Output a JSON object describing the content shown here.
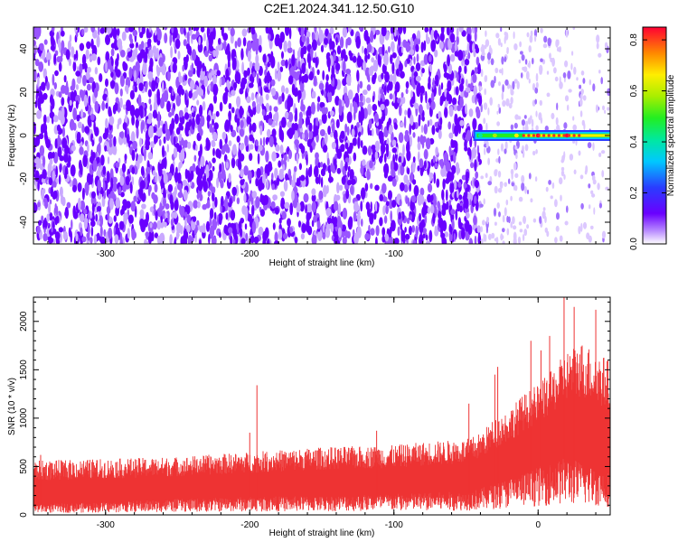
{
  "title": "C2E1.2024.341.12.50.G10",
  "chart_data": [
    {
      "type": "heatmap",
      "xlabel": "Height of straight line (km)",
      "ylabel": "Frequency (Hz)",
      "xlim": [
        -350,
        50
      ],
      "ylim": [
        -50,
        50
      ],
      "x_ticks": [
        -300,
        -200,
        -100,
        0
      ],
      "y_ticks": [
        -40,
        -20,
        0,
        20,
        40
      ],
      "colorbar": {
        "label": "Normalized spectral amplitude",
        "range": [
          0,
          0.85
        ],
        "ticks": [
          "0.0",
          "0.2",
          "0.4",
          "0.6",
          "0.8"
        ]
      },
      "features": {
        "noise_region_x": [
          -350,
          -40
        ],
        "noise_mean_amplitude": 0.05,
        "fading_region_x": [
          -40,
          50
        ],
        "fading_mean_amplitude": 0.015,
        "signal_line": {
          "x_start": -45,
          "x_end": 50,
          "frequency": 0,
          "peak_amplitude": 0.82,
          "peaks": [
            {
              "x": -40,
              "amplitude": 0.35
            },
            {
              "x": -30,
              "amplitude": 0.5
            },
            {
              "x": -15,
              "amplitude": 0.6
            },
            {
              "x": 0,
              "amplitude": 0.8
            },
            {
              "x": 20,
              "amplitude": 0.82
            }
          ]
        }
      }
    },
    {
      "type": "area",
      "xlabel": "Height of straight line (km)",
      "ylabel": "SNR (10 * v/v)",
      "xlim": [
        -350,
        50
      ],
      "ylim": [
        0,
        2250
      ],
      "x_ticks": [
        -300,
        -200,
        -100,
        0
      ],
      "y_ticks": [
        0,
        500,
        1000,
        1500,
        2000
      ],
      "series": [
        {
          "color": "#ee3333",
          "envelope": {
            "x": [
              -350,
              -300,
              -250,
              -200,
              -150,
              -100,
              -75,
              -50,
              -40,
              -30,
              -20,
              -10,
              0,
              10,
              20,
              30,
              40,
              50
            ],
            "lower": [
              100,
              120,
              150,
              170,
              180,
              200,
              210,
              220,
              250,
              300,
              350,
              400,
              450,
              500,
              550,
              500,
              450,
              400
            ],
            "upper": [
              560,
              580,
              600,
              650,
              700,
              720,
              760,
              780,
              850,
              1000,
              1100,
              1250,
              1350,
              1500,
              1700,
              1800,
              1700,
              1600
            ]
          },
          "spikes": [
            {
              "x": -345,
              "y": 620
            },
            {
              "x": -200,
              "y": 850
            },
            {
              "x": -195,
              "y": 1340
            },
            {
              "x": -112,
              "y": 870
            },
            {
              "x": -48,
              "y": 1150
            },
            {
              "x": -30,
              "y": 1450
            },
            {
              "x": -28,
              "y": 1530
            },
            {
              "x": -5,
              "y": 1800
            },
            {
              "x": 2,
              "y": 1700
            },
            {
              "x": 8,
              "y": 1850
            },
            {
              "x": 18,
              "y": 2250
            },
            {
              "x": 25,
              "y": 2150
            },
            {
              "x": 40,
              "y": 2120
            }
          ]
        }
      ]
    }
  ]
}
